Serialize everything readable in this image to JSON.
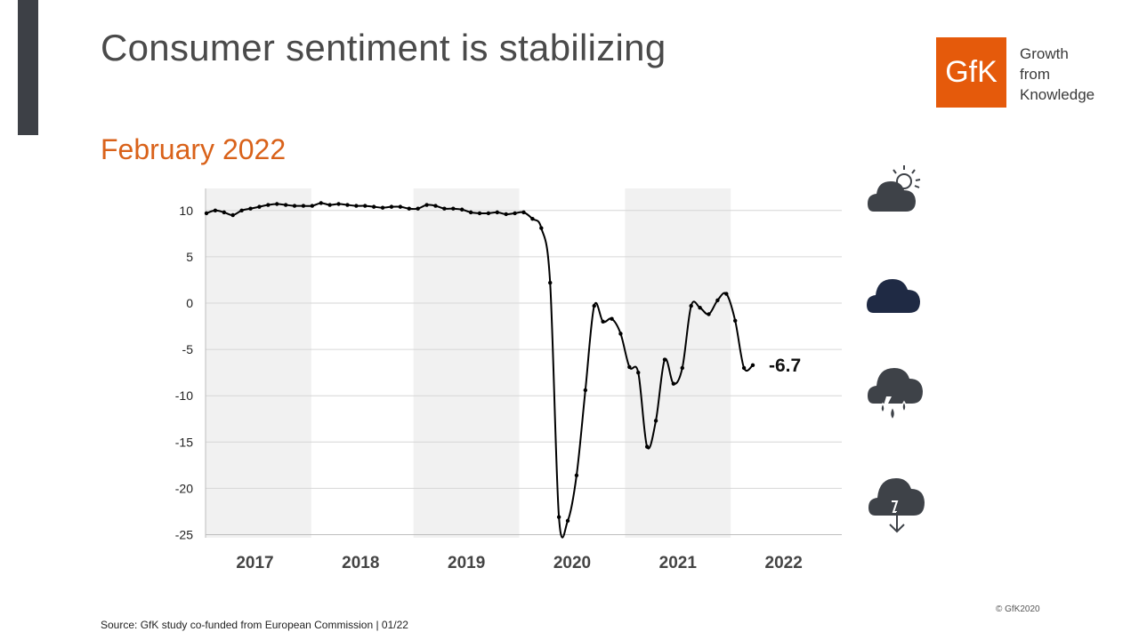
{
  "header": {
    "title": "Consumer sentiment is stabilizing",
    "subtitle": "February 2022"
  },
  "logo": {
    "mark": "GfK",
    "tagline": [
      "Growth",
      "from",
      "Knowledge"
    ],
    "color": "#e55a0b"
  },
  "colors": {
    "accent": "#d9621a",
    "sidebar": "#3d4046",
    "band": "#f1f1f1",
    "line": "#000000",
    "icon_dark": "#3e4248",
    "icon_navy": "#1f2a44"
  },
  "icons": [
    "sun-behind-cloud-icon",
    "cloud-icon",
    "rain-cloud-icon",
    "storm-cloud-down-icon"
  ],
  "footer": {
    "source": "Source: GfK study co-funded from European Commission | 01/22",
    "copyright": "© GfK2020"
  },
  "chart_data": {
    "type": "line",
    "title": "",
    "xlabel": "",
    "ylabel": "",
    "ylim": [
      -25,
      12
    ],
    "yticks": [
      10,
      5,
      0,
      -5,
      -10,
      -15,
      -20,
      -25
    ],
    "years": [
      "2017",
      "2018",
      "2019",
      "2020",
      "2021",
      "2022"
    ],
    "shaded_years": [
      "2017",
      "2019",
      "2021"
    ],
    "grid": true,
    "end_label": "-6.7",
    "series": [
      {
        "values": [
          9.7,
          10.0,
          9.8,
          9.5,
          10.0,
          10.2,
          10.4,
          10.6,
          10.7,
          10.6,
          10.5,
          10.5,
          10.5,
          10.8,
          10.6,
          10.7,
          10.6,
          10.5,
          10.5,
          10.4,
          10.3,
          10.4,
          10.4,
          10.2,
          10.2,
          10.6,
          10.5,
          10.2,
          10.2,
          10.1,
          9.8,
          9.7,
          9.7,
          9.8,
          9.6,
          9.7,
          9.8,
          9.1,
          8.1,
          2.2,
          -23.1,
          -23.5,
          -18.6,
          -9.4,
          -0.3,
          -2.0,
          -1.7,
          -3.3,
          -6.9,
          -7.5,
          -15.5,
          -12.7,
          -6.1,
          -8.7,
          -7.0,
          -0.3,
          -0.5,
          -1.2,
          0.3,
          1.0,
          -1.9,
          -7.0,
          -6.7
        ]
      }
    ]
  }
}
